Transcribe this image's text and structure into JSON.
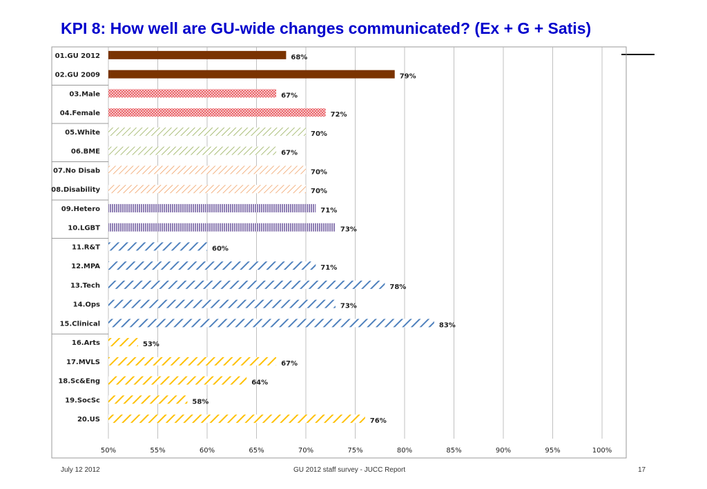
{
  "slide": {
    "title": "KPI 8: How well are GU-wide changes communicated? (Ex + G + Satis)",
    "footer_date": "July 12 2012",
    "footer_center": "GU 2012 staff survey -  JUCC Report",
    "page_number": "17"
  },
  "chart_data": {
    "type": "bar",
    "orientation": "horizontal",
    "title": "",
    "xlabel": "",
    "ylabel": "",
    "xlim": [
      50,
      100
    ],
    "x_ticks": [
      "50%",
      "55%",
      "60%",
      "65%",
      "70%",
      "75%",
      "80%",
      "85%",
      "90%",
      "95%",
      "100%"
    ],
    "grid": "vertical",
    "legend": "none",
    "categories": [
      "01.GU 2012",
      "02.GU 2009",
      "03.Male",
      "04.Female",
      "05.White",
      "06.BME",
      "07.No Disab",
      "08.Disability",
      "09.Hetero",
      "10.LGBT",
      "11.R&T",
      "12.MPA",
      "13.Tech",
      "14.Ops",
      "15.Clinical",
      "16.Arts",
      "17.MVLS",
      "18.Sc&Eng",
      "19.SocSc",
      "20.US"
    ],
    "values": [
      68,
      79,
      67,
      72,
      70,
      67,
      70,
      70,
      71,
      73,
      60,
      71,
      78,
      73,
      83,
      53,
      67,
      64,
      58,
      76
    ],
    "value_labels": [
      "68%",
      "79%",
      "67%",
      "72%",
      "70%",
      "67%",
      "70%",
      "70%",
      "71%",
      "73%",
      "60%",
      "71%",
      "78%",
      "73%",
      "83%",
      "53%",
      "67%",
      "64%",
      "58%",
      "76%"
    ],
    "groups": [
      {
        "rows": [
          0,
          1
        ],
        "color": "#7a3300",
        "pattern": "solid"
      },
      {
        "rows": [
          2,
          3
        ],
        "color": "#e8454c",
        "pattern": "dots"
      },
      {
        "rows": [
          4,
          5
        ],
        "color": "#8faa4e",
        "pattern": "diagonal-thin"
      },
      {
        "rows": [
          6,
          7
        ],
        "color": "#f09a5a",
        "pattern": "diagonal-thin"
      },
      {
        "rows": [
          8,
          9
        ],
        "color": "#6f5a9e",
        "pattern": "vertical"
      },
      {
        "rows": [
          10,
          11,
          12,
          13,
          14
        ],
        "color": "#4f81bd",
        "pattern": "diagonal-wide"
      },
      {
        "rows": [
          15,
          16,
          17,
          18,
          19
        ],
        "color": "#ffc000",
        "pattern": "diagonal-wide"
      }
    ]
  }
}
